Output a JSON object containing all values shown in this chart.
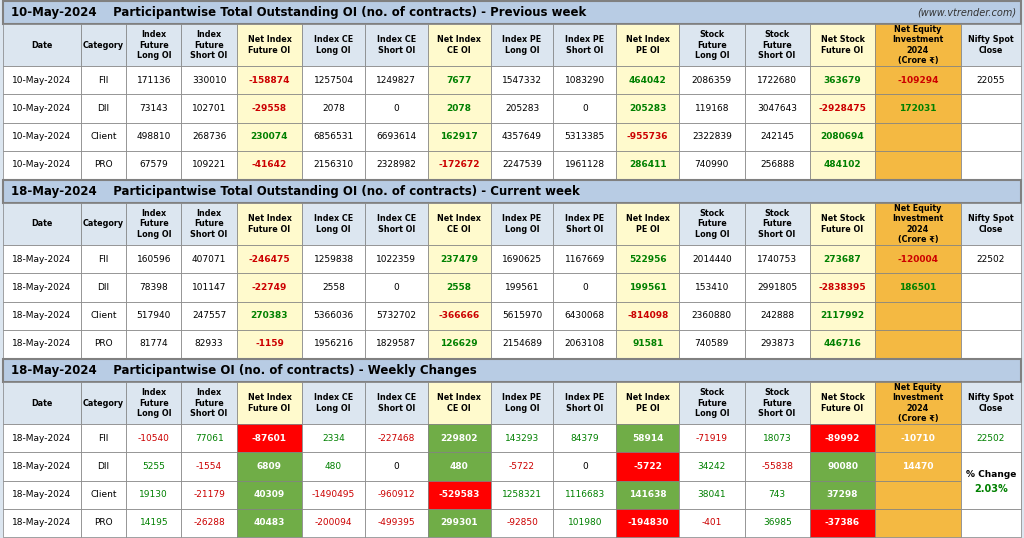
{
  "title1_date": "10-May-2024",
  "title1_main": "Participantwise Total Outstanding OI (no. of contracts) - Previous week",
  "title1_web": "(www.vtrender.com)",
  "title2_date": "18-May-2024",
  "title2_main": "Participantwise Total Outstanding OI (no. of contracts) - Current week",
  "title3_date": "18-May-2024",
  "title3_main": "Participantwise OI (no. of contracts) - Weekly Changes",
  "col_headers": [
    "Date",
    "Category",
    "Index\nFuture\nLong OI",
    "Index\nFuture\nShort OI",
    "Net Index\nFuture OI",
    "Index CE\nLong OI",
    "Index CE\nShort OI",
    "Net Index\nCE OI",
    "Index PE\nLong OI",
    "Index PE\nShort OI",
    "Net Index\nPE OI",
    "Stock\nFuture\nLong OI",
    "Stock\nFuture\nShort OI",
    "Net Stock\nFuture OI",
    "Net Equity\nInvestment\n2024\n(Crore ₹)",
    "Nifty Spot\nClose"
  ],
  "section1_rows": [
    [
      "10-May-2024",
      "FII",
      "171136",
      "330010",
      "-158874",
      "1257504",
      "1249827",
      "7677",
      "1547332",
      "1083290",
      "464042",
      "2086359",
      "1722680",
      "363679",
      "-109294",
      "22055"
    ],
    [
      "10-May-2024",
      "DII",
      "73143",
      "102701",
      "-29558",
      "2078",
      "0",
      "2078",
      "205283",
      "0",
      "205283",
      "119168",
      "3047643",
      "-2928475",
      "172031",
      ""
    ],
    [
      "10-May-2024",
      "Client",
      "498810",
      "268736",
      "230074",
      "6856531",
      "6693614",
      "162917",
      "4357649",
      "5313385",
      "-955736",
      "2322839",
      "242145",
      "2080694",
      "",
      ""
    ],
    [
      "10-May-2024",
      "PRO",
      "67579",
      "109221",
      "-41642",
      "2156310",
      "2328982",
      "-172672",
      "2247539",
      "1961128",
      "286411",
      "740990",
      "256888",
      "484102",
      "",
      ""
    ]
  ],
  "section2_rows": [
    [
      "18-May-2024",
      "FII",
      "160596",
      "407071",
      "-246475",
      "1259838",
      "1022359",
      "237479",
      "1690625",
      "1167669",
      "522956",
      "2014440",
      "1740753",
      "273687",
      "-120004",
      "22502"
    ],
    [
      "18-May-2024",
      "DII",
      "78398",
      "101147",
      "-22749",
      "2558",
      "0",
      "2558",
      "199561",
      "0",
      "199561",
      "153410",
      "2991805",
      "-2838395",
      "186501",
      ""
    ],
    [
      "18-May-2024",
      "Client",
      "517940",
      "247557",
      "270383",
      "5366036",
      "5732702",
      "-366666",
      "5615970",
      "6430068",
      "-814098",
      "2360880",
      "242888",
      "2117992",
      "",
      ""
    ],
    [
      "18-May-2024",
      "PRO",
      "81774",
      "82933",
      "-1159",
      "1956216",
      "1829587",
      "126629",
      "2154689",
      "2063108",
      "91581",
      "740589",
      "293873",
      "446716",
      "",
      ""
    ]
  ],
  "section3_rows": [
    [
      "18-May-2024",
      "FII",
      "-10540",
      "77061",
      "-87601",
      "2334",
      "-227468",
      "229802",
      "143293",
      "84379",
      "58914",
      "-71919",
      "18073",
      "-89992",
      "-10710",
      "22502"
    ],
    [
      "18-May-2024",
      "DII",
      "5255",
      "-1554",
      "6809",
      "480",
      "0",
      "480",
      "-5722",
      "0",
      "-5722",
      "34242",
      "-55838",
      "90080",
      "14470",
      ""
    ],
    [
      "18-May-2024",
      "Client",
      "19130",
      "-21179",
      "40309",
      "-1490495",
      "-960912",
      "-529583",
      "1258321",
      "1116683",
      "141638",
      "38041",
      "743",
      "37298",
      "",
      ""
    ],
    [
      "18-May-2024",
      "PRO",
      "14195",
      "-26288",
      "40483",
      "-200094",
      "-499395",
      "299301",
      "-92850",
      "101980",
      "-194830",
      "-401",
      "36985",
      "-37386",
      "",
      ""
    ]
  ],
  "pct_change": "2.03%",
  "bg_main": "#dce6f0",
  "bg_title": "#b8cce4",
  "bg_header": "#dce6f0",
  "bg_row_white": "#ffffff",
  "bg_net_yellow": "#fffacd",
  "bg_net_orange": "#ffd966",
  "bg_col14_orange": "#f4b942",
  "pos_color": "#008000",
  "neg_color": "#cc0000",
  "bg_pos_green": "#70ad47",
  "bg_neg_red": "#ff0000",
  "bg_pos_light": "#c6efce",
  "bg_neg_light": "#ffc7ce",
  "border_color": "#808080"
}
